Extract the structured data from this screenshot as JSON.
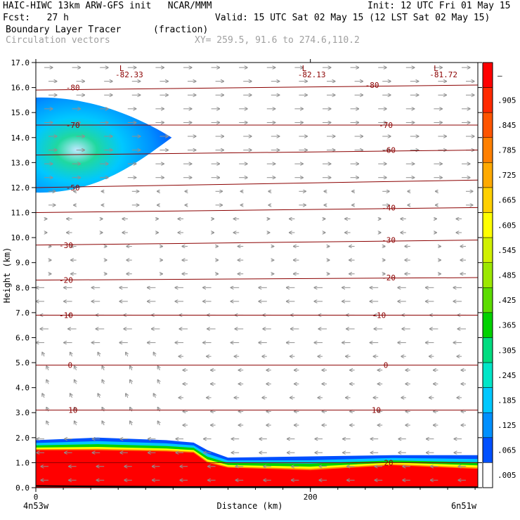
{
  "header": {
    "model": "HAIC-HIWC 13km ARW-GFS init   NCAR/MMM",
    "init": "Init: 12 UTC Fri 01 May 15",
    "fcst": "Fcst:   27 h",
    "valid": "Valid: 15 UTC Sat 02 May 15 (12 LST Sat 02 May 15)",
    "field": "Boundary Layer Tracer",
    "units": "(fraction)",
    "overlay": "Circulation vectors",
    "xy": "XY= 259.5, 91.6 to 274.6,110.2"
  },
  "chart_data": {
    "type": "cross-section",
    "xlabel": "Distance (km)",
    "ylabel": "Height (km)",
    "xlim": [
      0,
      322
    ],
    "ylim": [
      0,
      17
    ],
    "x_ticks": [
      0,
      200
    ],
    "x_tick_labels": [
      "0",
      "200"
    ],
    "x_end_labels": {
      "left": "4n53w",
      "right": "6n51w"
    },
    "y_ticks": [
      0.0,
      1.0,
      2.0,
      3.0,
      4.0,
      5.0,
      6.0,
      7.0,
      8.0,
      9.0,
      10.0,
      11.0,
      12.0,
      13.0,
      14.0,
      15.0,
      16.0,
      17.0
    ],
    "y_tick_labels": [
      "0.0",
      "1.0",
      "2.0",
      "3.0",
      "4.0",
      "5.0",
      "6.0",
      "7.0",
      "8.0",
      "9.0",
      "10.0",
      "11.0",
      "12.0",
      "13.0",
      "14.0",
      "15.0",
      "16.0",
      "17.0"
    ],
    "colorbar": {
      "labels": [
        "–",
        ".905",
        ".845",
        ".785",
        ".725",
        ".665",
        ".605",
        ".545",
        ".485",
        ".425",
        ".365",
        ".305",
        ".245",
        ".185",
        ".125",
        ".065",
        ".005"
      ],
      "colors": [
        "#ff0000",
        "#ff2a00",
        "#ff5500",
        "#ff8000",
        "#ffaa00",
        "#ffd000",
        "#ffff00",
        "#d0f000",
        "#9ce800",
        "#5cdc00",
        "#00d200",
        "#00dc80",
        "#00e6c8",
        "#00c8ff",
        "#0090ff",
        "#0050ff",
        "#ffffff"
      ]
    },
    "contours": [
      {
        "label": "-80",
        "heights": [
          15.9,
          16.1
        ]
      },
      {
        "label": "-70",
        "heights": [
          14.5,
          14.5
        ]
      },
      {
        "label": "-60",
        "heights": [
          13.3,
          13.5
        ]
      },
      {
        "label": "-50",
        "heights": [
          12.0,
          12.3
        ]
      },
      {
        "label": "-40",
        "heights": [
          11.0,
          11.2
        ]
      },
      {
        "label": "-30",
        "heights": [
          9.7,
          9.9
        ]
      },
      {
        "label": "-20",
        "heights": [
          8.3,
          8.4
        ]
      },
      {
        "label": "-10",
        "heights": [
          6.9,
          6.9
        ]
      },
      {
        "label": "0",
        "heights": [
          4.9,
          4.9
        ]
      },
      {
        "label": "10",
        "heights": [
          3.1,
          3.1
        ]
      },
      {
        "label": "20",
        "heights": [
          1.0,
          1.0
        ]
      }
    ],
    "isotherm_labels": [
      {
        "text": "-80",
        "x": 27,
        "y": 16.0
      },
      {
        "text": "-80",
        "x": 245,
        "y": 16.1
      },
      {
        "text": "-70",
        "x": 27,
        "y": 14.5
      },
      {
        "text": "-70",
        "x": 255,
        "y": 14.5
      },
      {
        "text": "-60",
        "x": 257,
        "y": 13.5
      },
      {
        "text": "-50",
        "x": 27,
        "y": 12.0
      },
      {
        "text": "-40",
        "x": 257,
        "y": 11.2
      },
      {
        "text": "-30",
        "x": 22,
        "y": 9.7
      },
      {
        "text": "-30",
        "x": 257,
        "y": 9.9
      },
      {
        "text": "-20",
        "x": 22,
        "y": 8.3
      },
      {
        "text": "-20",
        "x": 257,
        "y": 8.4
      },
      {
        "text": "-10",
        "x": 22,
        "y": 6.9
      },
      {
        "text": "-10",
        "x": 250,
        "y": 6.9
      },
      {
        "text": "0",
        "x": 25,
        "y": 4.9
      },
      {
        "text": "0",
        "x": 255,
        "y": 4.9
      },
      {
        "text": "10",
        "x": 27,
        "y": 3.1
      },
      {
        "text": "10",
        "x": 248,
        "y": 3.1
      },
      {
        "text": "20",
        "x": 257,
        "y": 1.0
      }
    ],
    "lows": [
      {
        "marker": "L",
        "value": "-82.33",
        "x": 68
      },
      {
        "marker": "L",
        "value": "-82.13",
        "x": 201
      },
      {
        "marker": "L",
        "value": "-81.72",
        "x": 297
      }
    ],
    "tracer_upper_blob": {
      "x_extent": [
        0,
        99
      ],
      "bottom": 11.8,
      "top": 15.6,
      "core_height": 14.0
    },
    "tracer_boundary_layer": {
      "x": [
        0,
        45,
        95,
        115,
        125,
        140,
        200,
        260,
        322
      ],
      "top": [
        1.9,
        2.0,
        1.9,
        1.8,
        1.5,
        1.2,
        1.25,
        1.3,
        1.3
      ],
      "saturated_top": [
        1.5,
        1.5,
        1.45,
        1.4,
        1.0,
        0.8,
        0.7,
        0.9,
        0.75
      ]
    }
  }
}
